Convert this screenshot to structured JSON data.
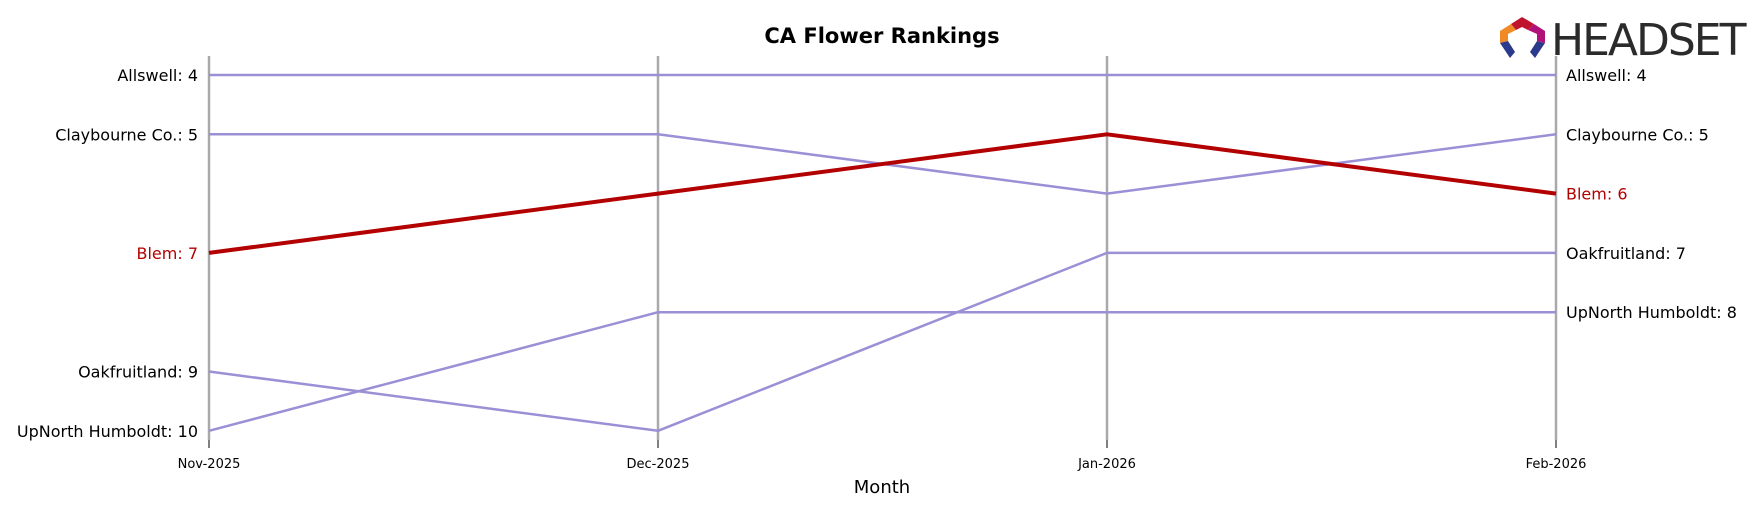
{
  "chart_data": {
    "type": "line",
    "title": "CA Flower Rankings",
    "xlabel": "Month",
    "ylabel": "",
    "x": [
      "Nov-2025",
      "Dec-2025",
      "Jan-2026",
      "Feb-2026"
    ],
    "ylim": [
      10,
      4
    ],
    "y_inverted": true,
    "grid": "vertical lines at each month",
    "series": [
      {
        "name": "Allswell",
        "values": [
          4,
          4,
          4,
          4
        ],
        "highlight": false
      },
      {
        "name": "Claybourne Co.",
        "values": [
          5,
          5,
          6,
          5
        ],
        "highlight": false
      },
      {
        "name": "Blem",
        "values": [
          7,
          6,
          5,
          6
        ],
        "highlight": true
      },
      {
        "name": "Oakfruitland",
        "values": [
          9,
          10,
          7,
          7
        ],
        "highlight": false
      },
      {
        "name": "UpNorth Humboldt",
        "values": [
          10,
          8,
          8,
          8
        ],
        "highlight": false
      }
    ],
    "left_labels": [
      "Allswell: 4",
      "Claybourne Co.: 5",
      "Blem: 7",
      "Oakfruitland: 9",
      "UpNorth Humboldt: 10"
    ],
    "right_labels": [
      "Allswell: 4",
      "Claybourne Co.: 5",
      "Blem: 6",
      "Oakfruitland: 7",
      "UpNorth Humboldt: 8"
    ]
  },
  "colors": {
    "highlight": "#b30000",
    "normal": "#9b8fd6",
    "grid": "#a9a9ad",
    "text": "#000000",
    "logo_text": "#2b2b2b",
    "logo_red": "#c0142e",
    "logo_magenta": "#b0127a",
    "logo_orange": "#f08a24",
    "logo_blue": "#2c3a8c"
  },
  "logo": {
    "text": "HEADSET",
    "icon": "headset-hexagon-logo-icon"
  }
}
